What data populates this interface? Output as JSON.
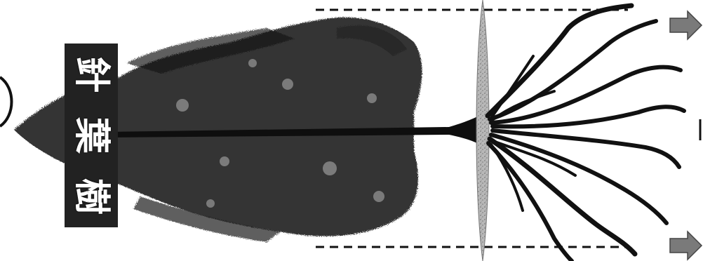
{
  "diagram": {
    "title_vertical": "針葉樹",
    "title_chars": [
      "針",
      "葉",
      "樹"
    ],
    "colors": {
      "ink": "#111111",
      "foliage": "#1a1a1a",
      "ground": "#b8b8b8",
      "arrow": "#7a7a7a",
      "label_bg": "#222222",
      "label_text": "#ffffff"
    },
    "icons": [
      "arrow-right-icon",
      "arrow-right-icon"
    ]
  }
}
